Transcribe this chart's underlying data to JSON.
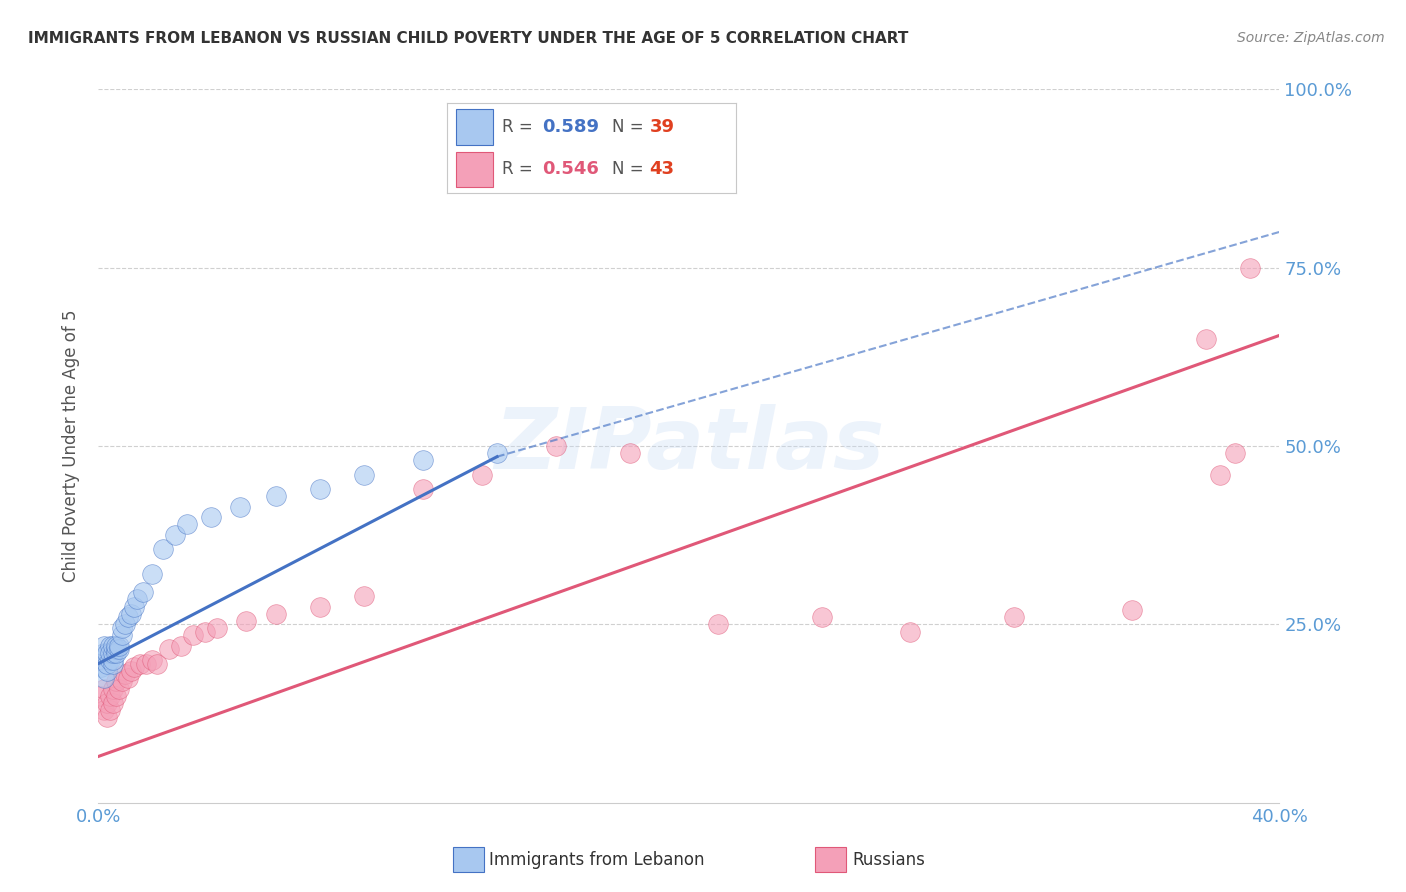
{
  "title": "IMMIGRANTS FROM LEBANON VS RUSSIAN CHILD POVERTY UNDER THE AGE OF 5 CORRELATION CHART",
  "source": "Source: ZipAtlas.com",
  "ylabel": "Child Poverty Under the Age of 5",
  "xlim": [
    0.0,
    0.4
  ],
  "ylim": [
    0.0,
    1.0
  ],
  "yticks": [
    0.0,
    0.25,
    0.5,
    0.75,
    1.0
  ],
  "ytick_labels": [
    "",
    "25.0%",
    "50.0%",
    "75.0%",
    "100.0%"
  ],
  "xticks": [
    0.0,
    0.08,
    0.16,
    0.24,
    0.32,
    0.4
  ],
  "xtick_labels": [
    "0.0%",
    "",
    "",
    "",
    "",
    "40.0%"
  ],
  "legend_label1": "Immigrants from Lebanon",
  "legend_label2": "Russians",
  "R1": "0.589",
  "N1": "39",
  "R2": "0.546",
  "N2": "43",
  "color_blue": "#a8c8f0",
  "color_pink": "#f4a0b8",
  "color_line_blue": "#4472c4",
  "color_line_pink": "#e05878",
  "color_axis": "#5b9bd5",
  "watermark": "ZIPatlas",
  "lebanon_x": [
    0.001,
    0.001,
    0.002,
    0.002,
    0.002,
    0.003,
    0.003,
    0.003,
    0.004,
    0.004,
    0.004,
    0.005,
    0.005,
    0.005,
    0.005,
    0.006,
    0.006,
    0.006,
    0.007,
    0.007,
    0.008,
    0.008,
    0.009,
    0.01,
    0.011,
    0.012,
    0.013,
    0.015,
    0.018,
    0.022,
    0.026,
    0.03,
    0.038,
    0.048,
    0.06,
    0.075,
    0.09,
    0.11,
    0.135
  ],
  "lebanon_y": [
    0.2,
    0.19,
    0.21,
    0.22,
    0.175,
    0.185,
    0.195,
    0.21,
    0.2,
    0.22,
    0.21,
    0.195,
    0.2,
    0.21,
    0.22,
    0.215,
    0.21,
    0.22,
    0.215,
    0.22,
    0.235,
    0.245,
    0.25,
    0.26,
    0.265,
    0.275,
    0.285,
    0.295,
    0.32,
    0.355,
    0.375,
    0.39,
    0.4,
    0.415,
    0.43,
    0.44,
    0.46,
    0.48,
    0.49
  ],
  "russia_x": [
    0.001,
    0.002,
    0.002,
    0.003,
    0.003,
    0.004,
    0.004,
    0.005,
    0.005,
    0.006,
    0.006,
    0.007,
    0.008,
    0.009,
    0.01,
    0.011,
    0.012,
    0.014,
    0.016,
    0.018,
    0.02,
    0.024,
    0.028,
    0.032,
    0.036,
    0.04,
    0.05,
    0.06,
    0.075,
    0.09,
    0.11,
    0.13,
    0.155,
    0.18,
    0.21,
    0.245,
    0.275,
    0.31,
    0.35,
    0.375,
    0.38,
    0.385,
    0.39
  ],
  "russia_y": [
    0.15,
    0.13,
    0.16,
    0.12,
    0.14,
    0.13,
    0.15,
    0.14,
    0.16,
    0.15,
    0.17,
    0.16,
    0.17,
    0.18,
    0.175,
    0.185,
    0.19,
    0.195,
    0.195,
    0.2,
    0.195,
    0.215,
    0.22,
    0.235,
    0.24,
    0.245,
    0.255,
    0.265,
    0.275,
    0.29,
    0.44,
    0.46,
    0.5,
    0.49,
    0.25,
    0.26,
    0.24,
    0.26,
    0.27,
    0.65,
    0.46,
    0.49,
    0.75
  ],
  "blue_line_x": [
    0.0,
    0.135
  ],
  "blue_line_y": [
    0.195,
    0.485
  ],
  "pink_line_x": [
    0.0,
    0.4
  ],
  "pink_line_y": [
    0.065,
    0.655
  ],
  "dash_line_x": [
    0.135,
    0.4
  ],
  "dash_line_y": [
    0.485,
    0.8
  ]
}
